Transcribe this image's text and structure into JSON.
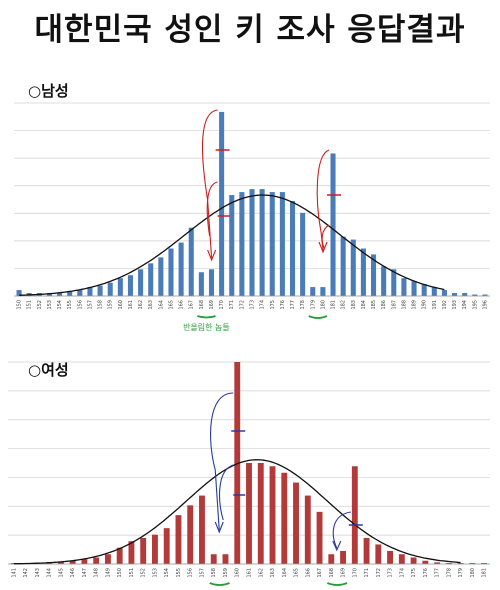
{
  "title": "대한민국 성인 키 조사 응답결과",
  "colors": {
    "men_bar": "#4a7db8",
    "women_bar": "#b23a3a",
    "curve": "#111111",
    "grid": "#d0d0d0",
    "red_annotation": "#c82020",
    "blue_annotation": "#2a3aa0",
    "green_annotation": "#2a9a3a"
  },
  "chart_data": [
    {
      "type": "bar",
      "panel_label": "○남성",
      "overlay": "normal-curve",
      "grid": true,
      "categories": [
        "150",
        "151",
        "152",
        "153",
        "154",
        "155",
        "156",
        "157",
        "158",
        "159",
        "160",
        "161",
        "162",
        "163",
        "164",
        "165",
        "166",
        "167",
        "168",
        "169",
        "170",
        "171",
        "172",
        "173",
        "174",
        "175",
        "176",
        "177",
        "178",
        "179",
        "180",
        "181",
        "182",
        "183",
        "184",
        "185",
        "186",
        "187",
        "188",
        "189",
        "190",
        "191",
        "192",
        "193",
        "194",
        "195",
        "196"
      ],
      "values": [
        2,
        1,
        1,
        1,
        1,
        1.5,
        2,
        3,
        3.5,
        4.5,
        6,
        7,
        9,
        11,
        13,
        16,
        18,
        23,
        8,
        9,
        62,
        34,
        35,
        36,
        36,
        35,
        35,
        32,
        28,
        3,
        3,
        48,
        20,
        19,
        16,
        14,
        10,
        9,
        6,
        5,
        4,
        3,
        2,
        1,
        1,
        0.5,
        0.5
      ],
      "ylim": [
        0,
        65
      ],
      "annotation": "반올림한 놈들"
    },
    {
      "type": "bar",
      "panel_label": "○여성",
      "overlay": "normal-curve",
      "grid": true,
      "categories": [
        "141",
        "142",
        "143",
        "144",
        "145",
        "146",
        "147",
        "148",
        "149",
        "150",
        "151",
        "152",
        "153",
        "154",
        "155",
        "156",
        "157",
        "158",
        "159",
        "160",
        "161",
        "162",
        "163",
        "164",
        "165",
        "166",
        "167",
        "168",
        "169",
        "170",
        "171",
        "172",
        "173",
        "174",
        "175",
        "176",
        "177",
        "178",
        "179",
        "180",
        "181"
      ],
      "values": [
        0.3,
        0.3,
        0.4,
        0.6,
        0.8,
        1,
        1.5,
        2,
        3,
        5,
        7,
        8,
        9,
        11,
        15,
        18,
        21,
        3,
        3,
        62,
        31,
        31,
        30,
        28,
        25,
        21,
        16,
        3,
        4,
        30,
        8,
        6,
        4,
        3,
        2,
        1,
        0.5,
        0.3,
        0.3,
        0.3,
        0.3
      ],
      "ylim": [
        0,
        62
      ]
    }
  ]
}
